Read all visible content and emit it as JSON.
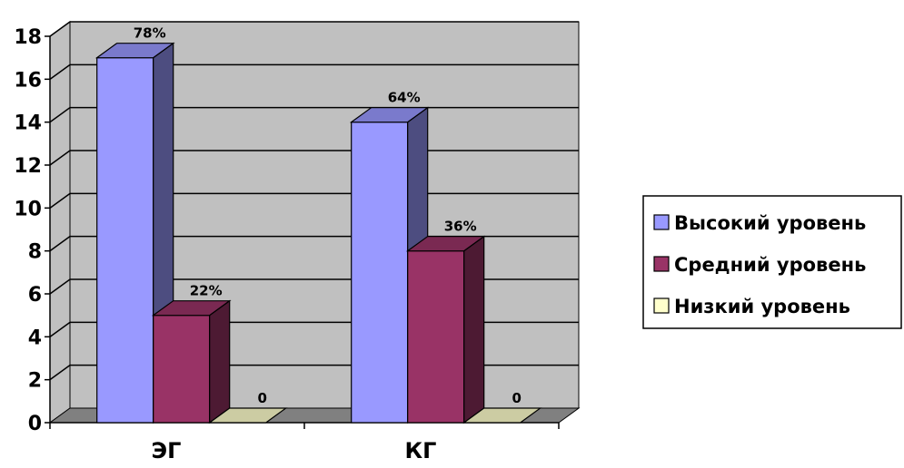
{
  "chart_data": {
    "type": "bar",
    "categories": [
      "ЭГ",
      "КГ"
    ],
    "series": [
      {
        "name": "Высокий уровень",
        "values": [
          17,
          14
        ],
        "labels": [
          "78%",
          "64%"
        ],
        "color": "#9999ff"
      },
      {
        "name": "Средний уровень",
        "values": [
          5,
          8
        ],
        "labels": [
          "22%",
          "36%"
        ],
        "color": "#993366"
      },
      {
        "name": "Низкий уровень",
        "values": [
          0,
          0
        ],
        "labels": [
          "0",
          "0"
        ],
        "color": "#ffffcc"
      }
    ],
    "y_ticks": [
      "0",
      "2",
      "4",
      "6",
      "8",
      "10",
      "12",
      "14",
      "16",
      "18"
    ],
    "ylim": [
      0,
      18
    ],
    "title": "",
    "xlabel": "",
    "ylabel": "",
    "grid": true,
    "style": "3d-column",
    "wall_color": "#c0c0c0",
    "floor_color": "#808080",
    "legend_position": "right"
  }
}
